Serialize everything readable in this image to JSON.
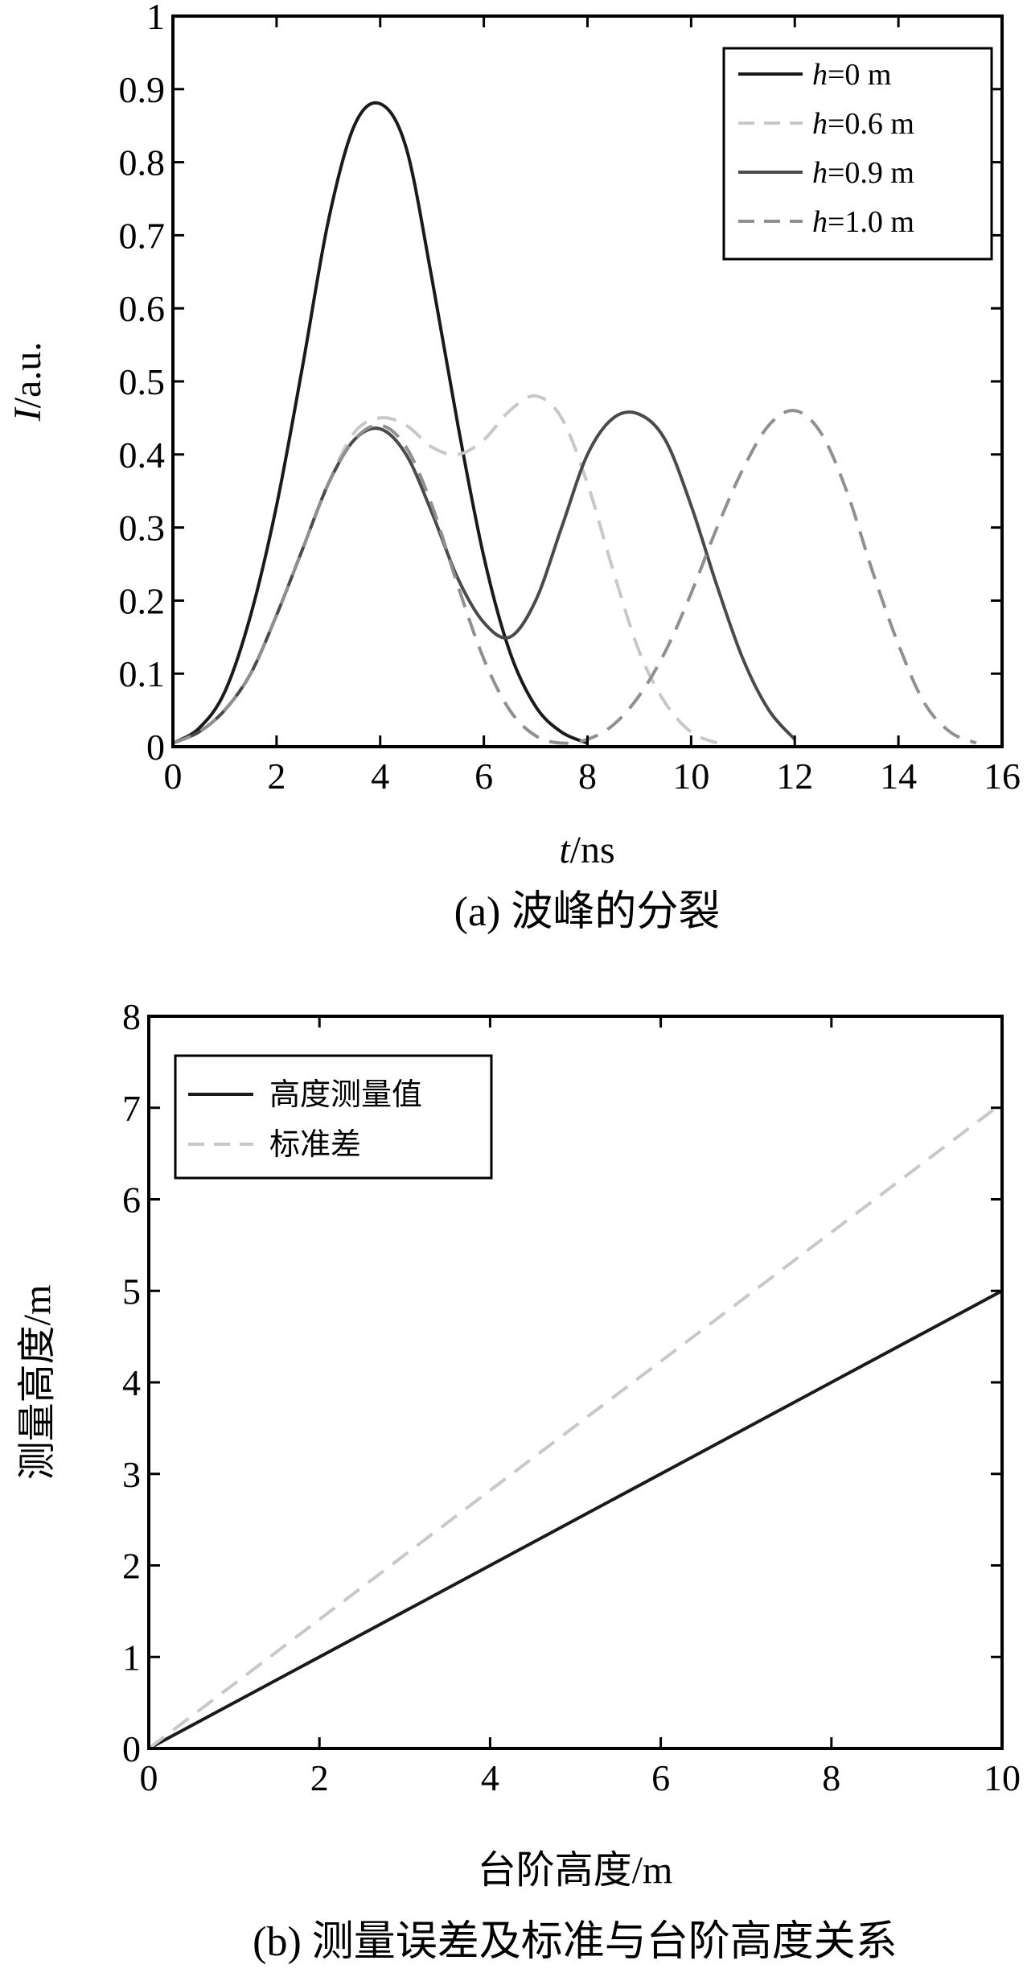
{
  "chart_data": [
    {
      "type": "line",
      "panel": "(a)",
      "caption": "(a) 波峰的分裂",
      "xlabel_var": "t",
      "xlabel_unit": "/ns",
      "ylabel_var": "I",
      "ylabel_unit": "/a.u.",
      "xlim": [
        0,
        16
      ],
      "ylim": [
        0,
        1
      ],
      "xticks": [
        "0",
        "2",
        "4",
        "6",
        "8",
        "10",
        "12",
        "14",
        "16"
      ],
      "yticks": [
        "0",
        "0.1",
        "0.2",
        "0.3",
        "0.4",
        "0.5",
        "0.6",
        "0.7",
        "0.8",
        "0.9",
        "1"
      ],
      "grid": false,
      "legend_position": "top-right",
      "series": [
        {
          "legend_var": "h",
          "legend_value": "=0 m",
          "color": "#1a1a1a",
          "dash": "solid",
          "x": [
            0,
            0.5,
            1,
            1.5,
            2,
            2.5,
            3,
            3.5,
            4,
            4.5,
            5,
            5.5,
            6,
            6.5,
            7,
            7.5,
            8
          ],
          "y": [
            0.005,
            0.025,
            0.075,
            0.18,
            0.33,
            0.52,
            0.72,
            0.85,
            0.88,
            0.82,
            0.64,
            0.44,
            0.26,
            0.13,
            0.055,
            0.02,
            0.005
          ]
        },
        {
          "legend_var": "h",
          "legend_value": "=0.6 m",
          "color": "#c8c8c8",
          "dash": "dashed",
          "x": [
            0,
            0.5,
            1,
            1.5,
            2,
            2.5,
            3,
            3.5,
            4,
            4.5,
            5,
            5.5,
            6,
            6.5,
            7,
            7.5,
            8,
            8.5,
            9,
            9.5,
            10,
            10.5
          ],
          "y": [
            0.005,
            0.02,
            0.05,
            0.1,
            0.18,
            0.27,
            0.36,
            0.43,
            0.45,
            0.44,
            0.41,
            0.4,
            0.42,
            0.46,
            0.48,
            0.45,
            0.36,
            0.24,
            0.13,
            0.06,
            0.02,
            0.005
          ]
        },
        {
          "legend_var": "h",
          "legend_value": "=0.9 m",
          "color": "#4a4a4a",
          "dash": "solid",
          "x": [
            0,
            0.5,
            1,
            1.5,
            2,
            2.5,
            3,
            3.5,
            4,
            4.5,
            5,
            5.5,
            6,
            6.5,
            7,
            7.5,
            8,
            8.5,
            9,
            9.5,
            10,
            10.5,
            11,
            11.5,
            12
          ],
          "y": [
            0.005,
            0.02,
            0.05,
            0.1,
            0.18,
            0.27,
            0.36,
            0.42,
            0.435,
            0.4,
            0.32,
            0.23,
            0.17,
            0.15,
            0.2,
            0.3,
            0.4,
            0.45,
            0.455,
            0.42,
            0.33,
            0.22,
            0.12,
            0.05,
            0.01
          ]
        },
        {
          "legend_var": "h",
          "legend_value": "=1.0 m",
          "color": "#909090",
          "dash": "dashed",
          "x": [
            0,
            0.5,
            1,
            1.5,
            2,
            2.5,
            3,
            3.5,
            4,
            4.5,
            5,
            5.5,
            6,
            6.5,
            7,
            7.5,
            8,
            8.5,
            9,
            9.5,
            10,
            10.5,
            11,
            11.5,
            12,
            12.5,
            13,
            13.5,
            14,
            14.5,
            15,
            15.5
          ],
          "y": [
            0.005,
            0.02,
            0.05,
            0.1,
            0.18,
            0.27,
            0.36,
            0.42,
            0.44,
            0.41,
            0.33,
            0.22,
            0.12,
            0.05,
            0.015,
            0.005,
            0.01,
            0.03,
            0.07,
            0.13,
            0.21,
            0.3,
            0.38,
            0.44,
            0.46,
            0.43,
            0.35,
            0.24,
            0.14,
            0.06,
            0.02,
            0.005
          ]
        }
      ]
    },
    {
      "type": "line",
      "panel": "(b)",
      "caption": "(b) 测量误差及标准与台阶高度关系",
      "xlabel": "台阶高度/m",
      "ylabel": "测量高度/m",
      "xlim": [
        0,
        10
      ],
      "ylim": [
        0,
        8
      ],
      "xticks": [
        "0",
        "2",
        "4",
        "6",
        "8",
        "10"
      ],
      "yticks": [
        "0",
        "1",
        "2",
        "3",
        "4",
        "5",
        "6",
        "7",
        "8"
      ],
      "grid": false,
      "legend_position": "top-left",
      "series": [
        {
          "name": "高度测量值",
          "color": "#1a1a1a",
          "dash": "solid",
          "x": [
            0,
            10
          ],
          "y": [
            0,
            5
          ]
        },
        {
          "name": "标准差",
          "color": "#c8c8c8",
          "dash": "dashed",
          "x": [
            0,
            10
          ],
          "y": [
            0,
            7.05
          ]
        }
      ]
    }
  ]
}
